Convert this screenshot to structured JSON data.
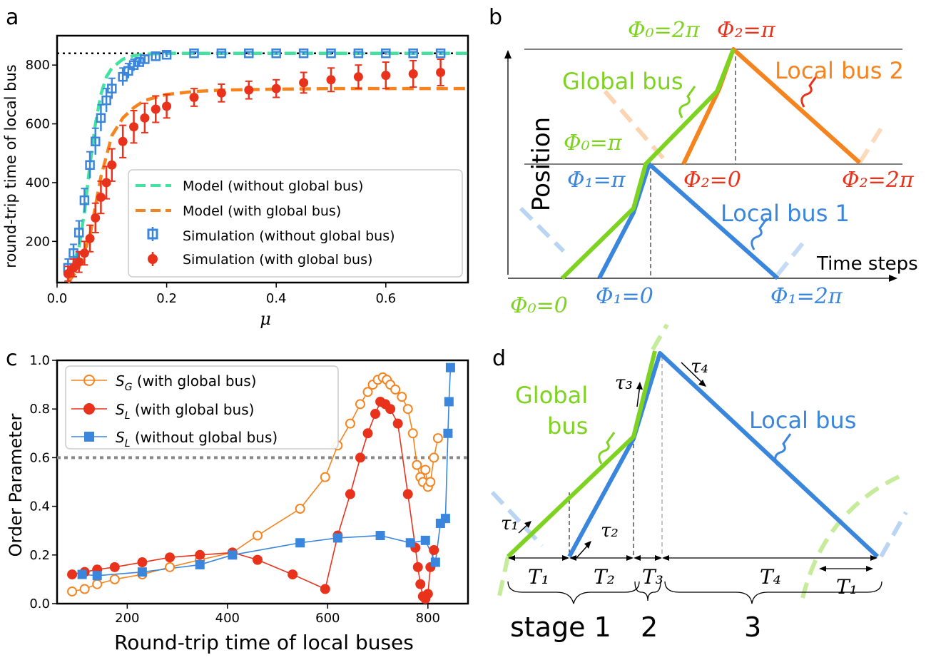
{
  "colors": {
    "green": "#7ed321",
    "lightgreen": "#44e2a0",
    "orange": "#f5841f",
    "red": "#e8321c",
    "blue": "#3a86dd",
    "black": "#000000",
    "gray": "#888888"
  },
  "chart_data": [
    {
      "panel": "a",
      "type": "scatter",
      "xlabel": "μ",
      "ylabel": "round-trip time of local bus",
      "xlim": [
        0,
        0.75
      ],
      "ylim": [
        60,
        900
      ],
      "xticks": [
        "0.0",
        "0.2",
        "0.4",
        "0.6"
      ],
      "yticks": [
        "200",
        "400",
        "600",
        "800"
      ],
      "reference_line": 840,
      "legend": [
        "Model (without global bus)",
        "Model (with global bus)",
        "Simulation (without global bus)",
        "Simulation (with global bus)"
      ],
      "series": [
        {
          "name": "Simulation (without global bus)",
          "x": [
            0.02,
            0.03,
            0.04,
            0.05,
            0.06,
            0.07,
            0.08,
            0.09,
            0.1,
            0.12,
            0.13,
            0.14,
            0.15,
            0.16,
            0.18,
            0.2,
            0.25,
            0.3,
            0.35,
            0.4,
            0.45,
            0.5,
            0.55,
            0.6,
            0.65,
            0.7
          ],
          "y": [
            110,
            160,
            230,
            340,
            460,
            540,
            620,
            680,
            720,
            760,
            780,
            800,
            810,
            820,
            830,
            835,
            840,
            840,
            840,
            840,
            840,
            840,
            840,
            840,
            840,
            840
          ],
          "err": [
            30,
            30,
            40,
            40,
            45,
            45,
            45,
            40,
            35,
            30,
            25,
            20,
            15,
            12,
            10,
            8,
            5,
            5,
            5,
            5,
            5,
            5,
            5,
            5,
            5,
            5
          ]
        },
        {
          "name": "Simulation (with global bus)",
          "x": [
            0.02,
            0.03,
            0.04,
            0.05,
            0.06,
            0.07,
            0.08,
            0.09,
            0.1,
            0.12,
            0.14,
            0.16,
            0.18,
            0.2,
            0.25,
            0.3,
            0.35,
            0.4,
            0.45,
            0.5,
            0.55,
            0.6,
            0.65,
            0.7
          ],
          "y": [
            90,
            110,
            130,
            160,
            210,
            280,
            350,
            400,
            460,
            540,
            590,
            620,
            650,
            660,
            690,
            705,
            715,
            720,
            740,
            750,
            760,
            765,
            770,
            775
          ],
          "err": [
            25,
            30,
            35,
            40,
            45,
            50,
            55,
            55,
            55,
            55,
            55,
            50,
            45,
            40,
            30,
            30,
            30,
            30,
            35,
            40,
            40,
            45,
            45,
            45
          ]
        },
        {
          "name": "Model (without global bus)",
          "x": [
            0.02,
            0.04,
            0.05,
            0.06,
            0.07,
            0.08,
            0.09,
            0.1,
            0.12,
            0.14,
            0.16,
            0.2,
            0.3,
            0.5,
            0.75
          ],
          "y": [
            70,
            180,
            300,
            460,
            600,
            700,
            760,
            790,
            820,
            832,
            837,
            840,
            840,
            840,
            840
          ]
        },
        {
          "name": "Model (with global bus)",
          "x": [
            0.02,
            0.04,
            0.06,
            0.08,
            0.1,
            0.12,
            0.14,
            0.16,
            0.2,
            0.25,
            0.3,
            0.4,
            0.5,
            0.75
          ],
          "y": [
            60,
            110,
            220,
            420,
            560,
            620,
            655,
            680,
            700,
            710,
            715,
            718,
            720,
            720
          ]
        }
      ]
    },
    {
      "panel": "c",
      "type": "line",
      "xlabel": "Round-trip time of local buses",
      "ylabel": "Order Parameter",
      "xlim": [
        60,
        880
      ],
      "ylim": [
        0,
        1
      ],
      "xticks": [
        "200",
        "400",
        "600",
        "800"
      ],
      "yticks": [
        "0.0",
        "0.2",
        "0.4",
        "0.6",
        "0.8",
        "1.0"
      ],
      "reference_line": 0.6,
      "series": [
        {
          "name": "S_G (with global bus)",
          "label_sub": "G",
          "label_rest": " (with global bus)",
          "x": [
            90,
            115,
            140,
            175,
            230,
            285,
            345,
            410,
            460,
            545,
            595,
            620,
            645,
            665,
            680,
            690,
            700,
            710,
            718,
            725,
            735,
            748,
            760,
            770,
            778,
            785,
            790,
            795,
            800,
            805,
            812,
            820
          ],
          "y": [
            0.05,
            0.06,
            0.08,
            0.1,
            0.12,
            0.15,
            0.18,
            0.21,
            0.28,
            0.39,
            0.52,
            0.65,
            0.74,
            0.82,
            0.87,
            0.9,
            0.92,
            0.93,
            0.92,
            0.9,
            0.88,
            0.85,
            0.8,
            0.7,
            0.57,
            0.52,
            0.5,
            0.55,
            0.48,
            0.5,
            0.6,
            0.68
          ]
        },
        {
          "name": "S_L (with global bus)",
          "label_sub": "L",
          "label_rest": "  (with global bus)",
          "x": [
            90,
            115,
            140,
            175,
            230,
            285,
            345,
            410,
            460,
            530,
            595,
            620,
            645,
            665,
            680,
            695,
            705,
            715,
            725,
            740,
            760,
            775,
            780,
            785,
            790,
            795,
            800,
            805,
            812
          ],
          "y": [
            0.12,
            0.13,
            0.14,
            0.15,
            0.17,
            0.19,
            0.2,
            0.21,
            0.18,
            0.12,
            0.06,
            0.28,
            0.45,
            0.6,
            0.7,
            0.78,
            0.83,
            0.82,
            0.8,
            0.74,
            0.45,
            0.23,
            0.15,
            0.08,
            0.03,
            0.02,
            0.04,
            0.15,
            0.22
          ]
        },
        {
          "name": "S_L (without global bus)",
          "label_sub": "L",
          "label_rest": " (without global bus)",
          "x": [
            110,
            140,
            230,
            345,
            410,
            545,
            620,
            705,
            765,
            795,
            815,
            825,
            835,
            840,
            842,
            845
          ],
          "y": [
            0.12,
            0.115,
            0.13,
            0.16,
            0.2,
            0.25,
            0.27,
            0.28,
            0.25,
            0.26,
            0.17,
            0.33,
            0.35,
            0.7,
            0.83,
            0.97
          ]
        }
      ]
    }
  ],
  "panel_labels": {
    "a": "a",
    "b": "b",
    "c": "c",
    "d": "d"
  },
  "diagram_b": {
    "position_label": "Position",
    "time_label": "Time steps",
    "global_bus_label": "Global bus",
    "local_bus_1_label": "Local bus 1",
    "local_bus_2_label": "Local bus 2",
    "phi0_0": "Φ₀=0",
    "phi0_pi": "Φ₀=π",
    "phi0_2pi": "Φ₀=2π",
    "phi1_0": "Φ₁=0",
    "phi1_pi": "Φ₁=π",
    "phi1_2pi": "Φ₁=2π",
    "phi2_0": "Φ₂=0",
    "phi2_pi": "Φ₂=π",
    "phi2_2pi": "Φ₂=2π"
  },
  "diagram_d": {
    "global_bus_line1": "Global",
    "global_bus_line2": "bus",
    "local_bus_label": "Local bus",
    "tau1": "τ₁",
    "tau2": "τ₂",
    "tau3": "τ₃",
    "tau4": "τ₄",
    "T1": "T₁",
    "T2": "T₂",
    "T3": "T₃",
    "T4": "T₄",
    "T1b": "T₁",
    "stage1": "stage 1",
    "stage2": "2",
    "stage3": "3"
  }
}
